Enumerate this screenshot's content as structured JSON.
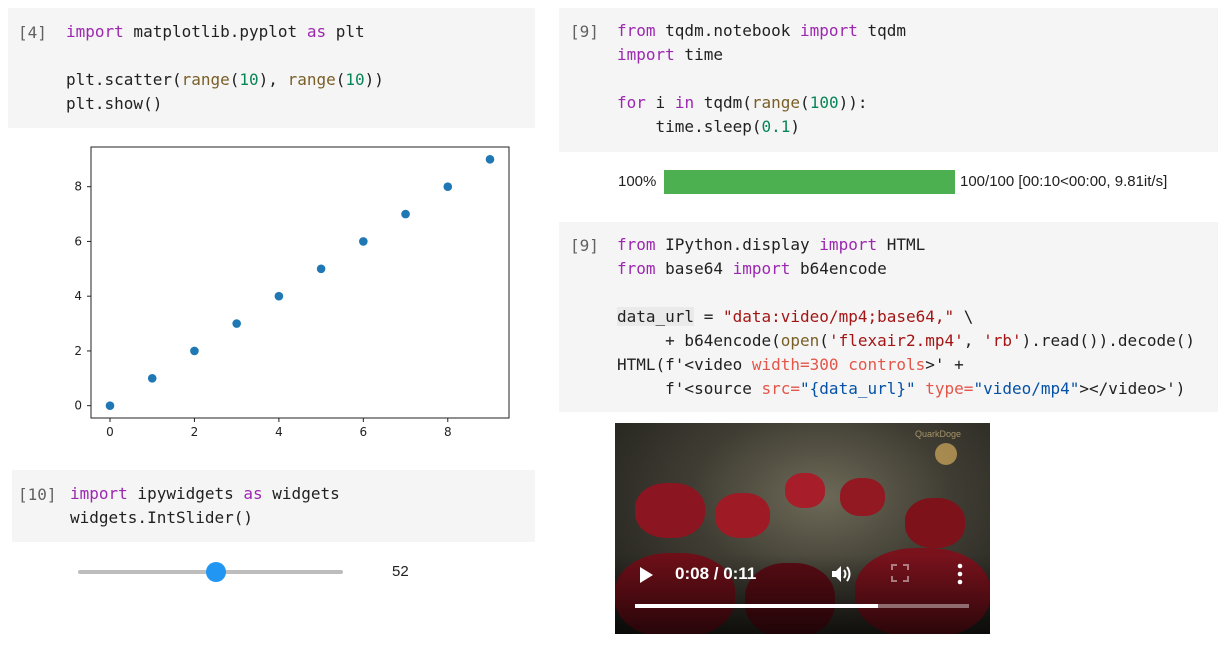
{
  "cells": {
    "scatter": {
      "prompt": "[4]"
    },
    "slider": {
      "prompt": "[10]"
    },
    "tqdm": {
      "prompt": "[9]"
    },
    "video": {
      "prompt": "[9]"
    }
  },
  "chart_data": {
    "type": "scatter",
    "x": [
      0,
      1,
      2,
      3,
      4,
      5,
      6,
      7,
      8,
      9
    ],
    "y": [
      0,
      1,
      2,
      3,
      4,
      5,
      6,
      7,
      8,
      9
    ],
    "xticks": [
      0,
      2,
      4,
      6,
      8
    ],
    "yticks": [
      0,
      2,
      4,
      6,
      8
    ],
    "xlim": [
      -0.45,
      9.45
    ],
    "ylim": [
      -0.45,
      9.45
    ],
    "title": "",
    "xlabel": "",
    "ylabel": "",
    "grid": false,
    "marker_color": "#1f77b4"
  },
  "progress": {
    "percent_label": "100%",
    "fraction": 1.0,
    "stats": "100/100 [00:10<00:00, 9.81it/s]",
    "color": "#4caf50"
  },
  "slider": {
    "value": 52,
    "min": 0,
    "max": 100,
    "color": "#2196f3"
  },
  "video": {
    "time_label": "0:08 / 0:11",
    "progress_fraction": 0.727,
    "logo_text": "QuarkDoge",
    "icons": [
      "play-icon",
      "volume-icon",
      "fullscreen-icon",
      "more-options-icon"
    ]
  }
}
